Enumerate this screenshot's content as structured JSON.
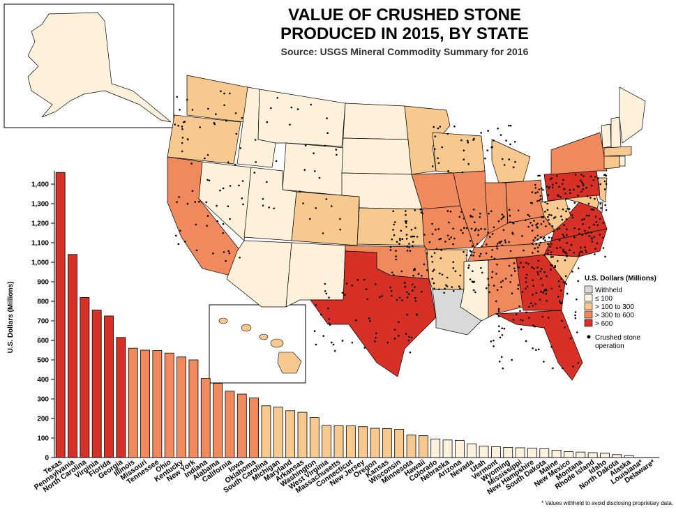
{
  "title_line1": "VALUE OF CRUSHED STONE",
  "title_line2": "PRODUCED IN 2015, BY STATE",
  "subtitle": "Source:  USGS Mineral Commodity Summary for 2016",
  "footnote": "* Values withheld to avoid disclosing proprietary data.",
  "colors": {
    "withheld": "#d9d9d9",
    "le100": "#fdf1dc",
    "100to300": "#f8c98e",
    "300to600": "#f08a5d",
    "gt600": "#d73027",
    "dot": "#000000"
  },
  "legend": {
    "title": "U.S. Dollars (Millions)",
    "items": [
      {
        "label": "Withheld",
        "color": "#d9d9d9"
      },
      {
        "label": "≤ 100",
        "color": "#fdf1dc"
      },
      {
        "label": "> 100 to 300",
        "color": "#f8c98e"
      },
      {
        "label": "> 300 to 600",
        "color": "#f08a5d"
      },
      {
        "label": "> 600",
        "color": "#d73027"
      }
    ],
    "operation_label_1": "Crushed stone",
    "operation_label_2": "operation"
  },
  "chart_data": {
    "type": "bar",
    "title": "VALUE OF CRUSHED STONE PRODUCED IN 2015, BY STATE",
    "ylabel": "U.S. Dollars (Millions)",
    "ylim": [
      0,
      1450
    ],
    "yticks": [
      0,
      100,
      200,
      300,
      400,
      500,
      600,
      700,
      800,
      900,
      1000,
      1100,
      1200,
      1300,
      1400
    ],
    "ytick_labels": [
      "0",
      "100",
      "200",
      "300",
      "400",
      "500",
      "600",
      "700",
      "800",
      "900",
      "1,000",
      "1,100",
      "1,200",
      "1,300",
      "1,400"
    ],
    "categories": [
      "Texas",
      "Pennsylvania",
      "North Carolina",
      "Virginia",
      "Florida",
      "Georgia",
      "Illinois",
      "Missouri",
      "Tennessee",
      "Ohio",
      "Kentucky",
      "New York",
      "Indiana",
      "Alabama",
      "California",
      "Iowa",
      "Oklahoma",
      "South Carolina",
      "Michigan",
      "Maryland",
      "Arkansas",
      "Washington",
      "West Virginia",
      "Massachusetts",
      "Connecticut",
      "New Jersey",
      "Oregon",
      "Kansas",
      "Wisconsin",
      "Minnesota",
      "Hawaii",
      "Colorado",
      "Nebraska",
      "Arizona",
      "Nevada",
      "Utah",
      "Vermont",
      "Wyoming",
      "Mississippi",
      "New Hampshire",
      "South Dakota",
      "Maine",
      "New Mexico",
      "Montana",
      "Rhode Island",
      "Idaho",
      "North Dakota",
      "Alaska",
      "Louisiana*",
      "Delaware*"
    ],
    "values": [
      1460,
      1040,
      820,
      755,
      725,
      615,
      560,
      550,
      548,
      535,
      515,
      500,
      405,
      380,
      340,
      325,
      305,
      265,
      258,
      240,
      232,
      205,
      165,
      163,
      162,
      158,
      150,
      148,
      145,
      115,
      112,
      95,
      90,
      88,
      70,
      58,
      55,
      52,
      50,
      48,
      45,
      38,
      30,
      28,
      25,
      22,
      15,
      10,
      0,
      0
    ]
  }
}
